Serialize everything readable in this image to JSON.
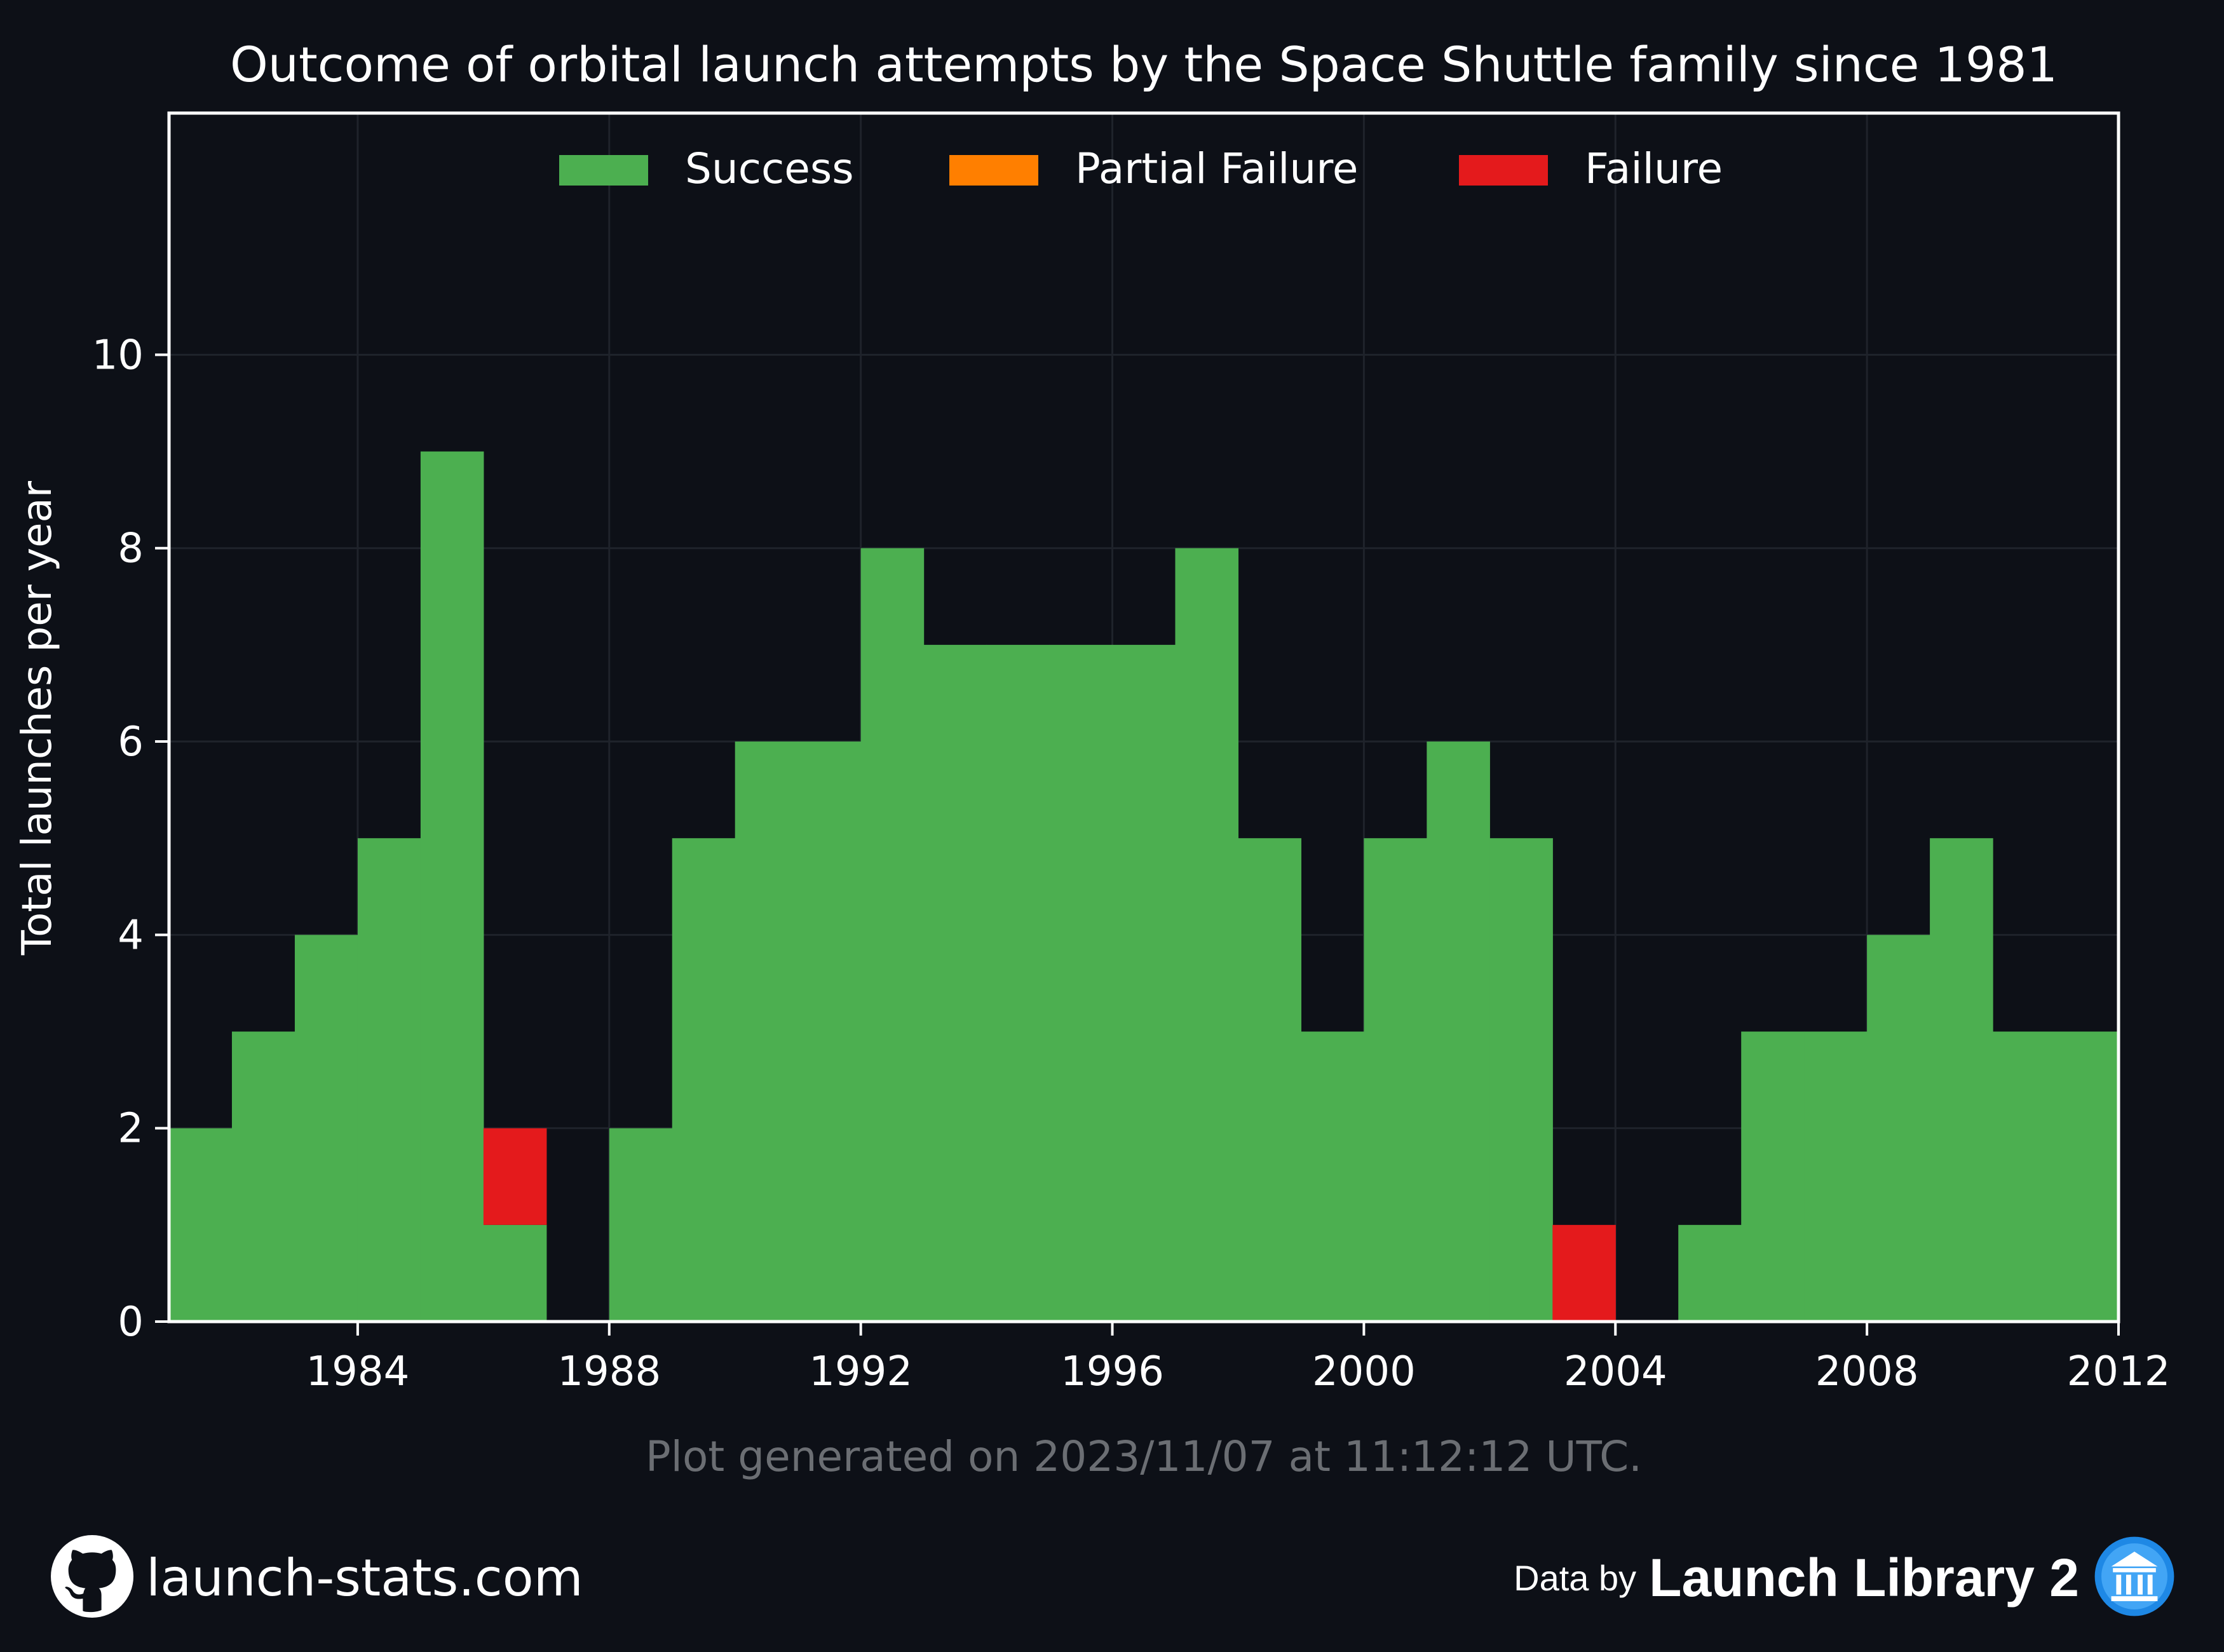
{
  "chart_data": {
    "type": "bar",
    "title": "Outcome of orbital launch attempts by the Space Shuttle family since 1981",
    "xlabel": "",
    "ylabel": "Total launches per year",
    "x": [
      1981,
      1982,
      1983,
      1984,
      1985,
      1986,
      1987,
      1988,
      1989,
      1990,
      1991,
      1992,
      1993,
      1994,
      1995,
      1996,
      1997,
      1998,
      1999,
      2000,
      2001,
      2002,
      2003,
      2004,
      2005,
      2006,
      2007,
      2008,
      2009,
      2010,
      2011
    ],
    "series": [
      {
        "name": "Success",
        "color": "#4caf50",
        "values": [
          2,
          3,
          4,
          5,
          9,
          1,
          0,
          2,
          5,
          6,
          6,
          8,
          7,
          7,
          7,
          7,
          8,
          5,
          3,
          5,
          6,
          5,
          0,
          0,
          1,
          3,
          3,
          4,
          5,
          3,
          3
        ]
      },
      {
        "name": "Partial Failure",
        "color": "#ff7f00",
        "values": [
          0,
          0,
          0,
          0,
          0,
          0,
          0,
          0,
          0,
          0,
          0,
          0,
          0,
          0,
          0,
          0,
          0,
          0,
          0,
          0,
          0,
          0,
          0,
          0,
          0,
          0,
          0,
          0,
          0,
          0,
          0
        ]
      },
      {
        "name": "Failure",
        "color": "#e41a1c",
        "values": [
          0,
          0,
          0,
          0,
          0,
          1,
          0,
          0,
          0,
          0,
          0,
          0,
          0,
          0,
          0,
          0,
          0,
          0,
          0,
          0,
          0,
          0,
          1,
          0,
          0,
          0,
          0,
          0,
          0,
          0,
          0
        ]
      }
    ],
    "stacked": true,
    "xlim": [
      1981,
      2012
    ],
    "ylim": [
      0,
      12.5
    ],
    "xticks": [
      1984,
      1988,
      1992,
      1996,
      2000,
      2004,
      2008,
      2012
    ],
    "yticks": [
      0,
      2,
      4,
      6,
      8,
      10
    ],
    "grid": true,
    "legend": "top-center"
  },
  "footnote": "Plot generated on 2023/11/07 at 11:12:12 UTC.",
  "footer": {
    "site": "launch-stats.com",
    "data_by": "Data by",
    "library": "Launch Library 2"
  },
  "icons": {
    "left": "github-icon",
    "right": "launch-library-logo-icon"
  }
}
